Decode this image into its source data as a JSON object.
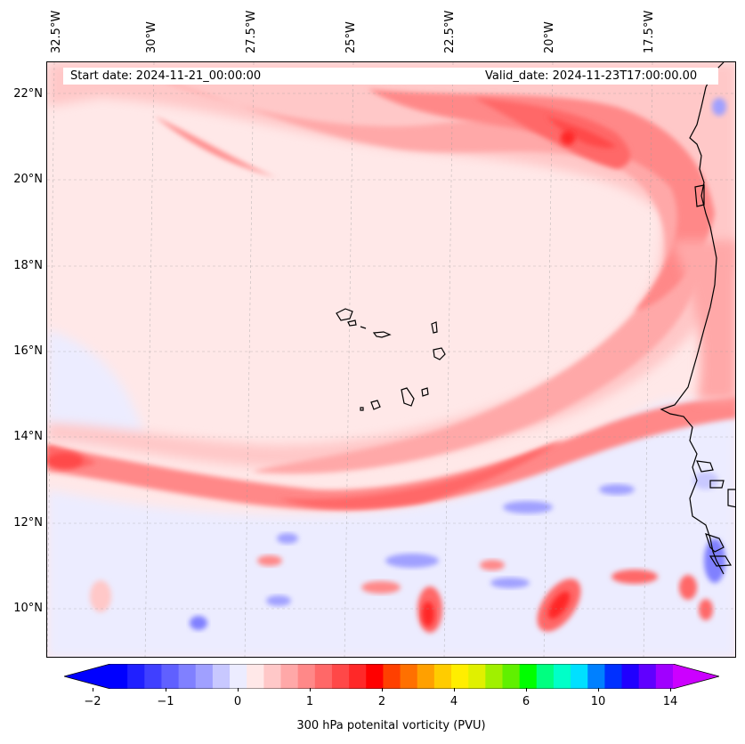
{
  "header": {
    "start_date": "Start date: 2024-11-21_00:00:00",
    "valid_date": "Valid_date: 2024-11-23T17:00:00.00"
  },
  "map": {
    "longitude_labels": [
      "32.5°W",
      "30°W",
      "27.5°W",
      "25°W",
      "22.5°W",
      "20°W",
      "17.5°W"
    ],
    "latitude_labels": [
      "22°N",
      "20°N",
      "18°N",
      "16°N",
      "14°N",
      "12°N",
      "10°N"
    ],
    "gridlines": true,
    "field": "potential vorticity",
    "level": "300 hPa"
  },
  "colorbar": {
    "label": "300 hPa potenital vorticity (PVU)",
    "tick_labels": [
      "−2",
      "−1",
      "0",
      "1",
      "2",
      "4",
      "6",
      "10",
      "14"
    ],
    "colors": [
      "#0000ff",
      "#2020ff",
      "#4040ff",
      "#6060ff",
      "#8080ff",
      "#a0a0ff",
      "#c8c8ff",
      "#ececff",
      "#ffe8e8",
      "#ffc8c8",
      "#ffa8a8",
      "#ff8888",
      "#ff6868",
      "#ff4848",
      "#ff2828",
      "#ff0000",
      "#ff4000",
      "#ff7000",
      "#ffa000",
      "#ffcc00",
      "#ffee00",
      "#e0f000",
      "#a0f000",
      "#60f000",
      "#00ff00",
      "#00ff80",
      "#00ffc8",
      "#00e0ff",
      "#0080ff",
      "#0030ff",
      "#2000ff",
      "#6000ff",
      "#a000ff"
    ],
    "extend_low": "#0000ff",
    "extend_high": "#cc00ff"
  }
}
